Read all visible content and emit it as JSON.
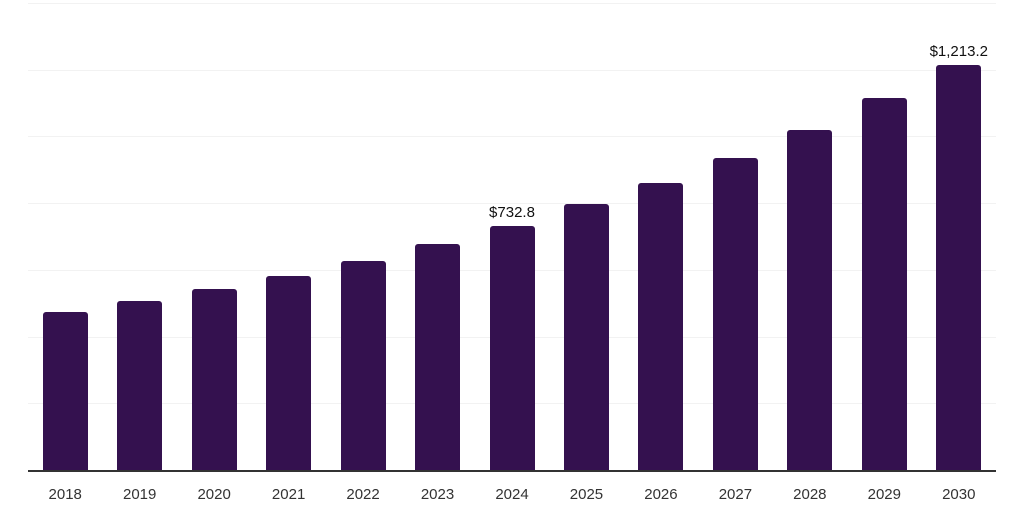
{
  "chart_data": {
    "type": "bar",
    "title": "",
    "xlabel": "",
    "ylabel": "",
    "categories": [
      "2018",
      "2019",
      "2020",
      "2021",
      "2022",
      "2023",
      "2024",
      "2025",
      "2026",
      "2027",
      "2028",
      "2029",
      "2030"
    ],
    "values": [
      473,
      508,
      543,
      583,
      628,
      678,
      732.8,
      796,
      861,
      934,
      1018,
      1114,
      1213.2
    ],
    "data_labels": [
      "",
      "",
      "",
      "",
      "",
      "",
      "$732.8",
      "",
      "",
      "",
      "",
      "",
      "$1,213.2"
    ],
    "ylim": [
      0,
      1400
    ],
    "grid": true,
    "grid_step": 200,
    "y_tick_labels_visible": false,
    "legend": false,
    "bar_color": "#34114F",
    "gridline_color": "#F2F2F2",
    "axis_line_color": "#333333",
    "tick_label_color": "#333333",
    "data_label_color": "#111111"
  }
}
